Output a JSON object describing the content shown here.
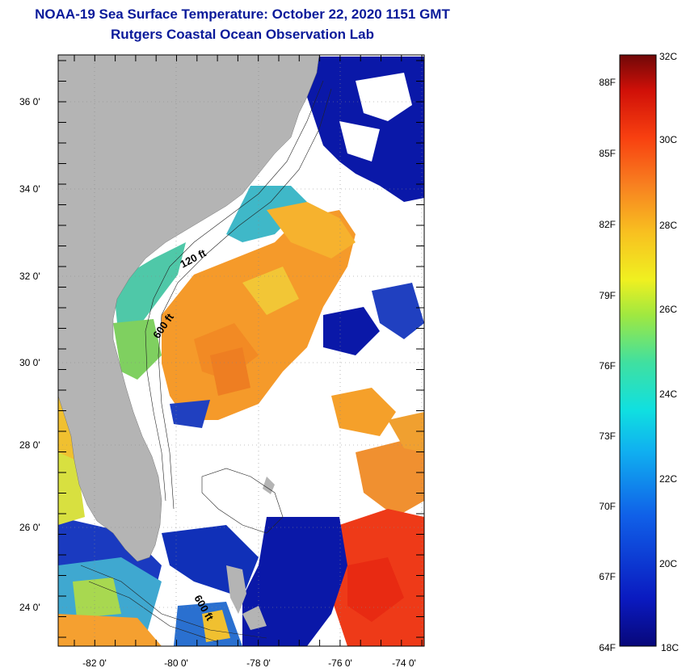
{
  "title": "NOAA-19 Sea Surface Temperature:  October 22, 2020 1151 GMT",
  "subtitle": "Rutgers Coastal Ocean Observation Lab",
  "map": {
    "lat_labels": [
      "36 0'",
      "34 0'",
      "32 0'",
      "30 0'",
      "28 0'",
      "26 0'",
      "24 0'"
    ],
    "lon_labels": [
      "-82 0'",
      "-80 0'",
      "-78 0'",
      "-76 0'",
      "-74 0'"
    ],
    "contour_labels": [
      "120 ft",
      "600 ft",
      "600 ft"
    ],
    "land_color": "#b4b4b4",
    "cloud_color": "#ffffff"
  },
  "colorbar": {
    "celsius_labels": [
      "32C",
      "30C",
      "28C",
      "26C",
      "24C",
      "22C",
      "20C",
      "18C"
    ],
    "fahrenheit_labels": [
      "88F",
      "85F",
      "82F",
      "79F",
      "76F",
      "73F",
      "70F",
      "67F",
      "64F"
    ],
    "min_c": 18,
    "max_c": 32
  }
}
